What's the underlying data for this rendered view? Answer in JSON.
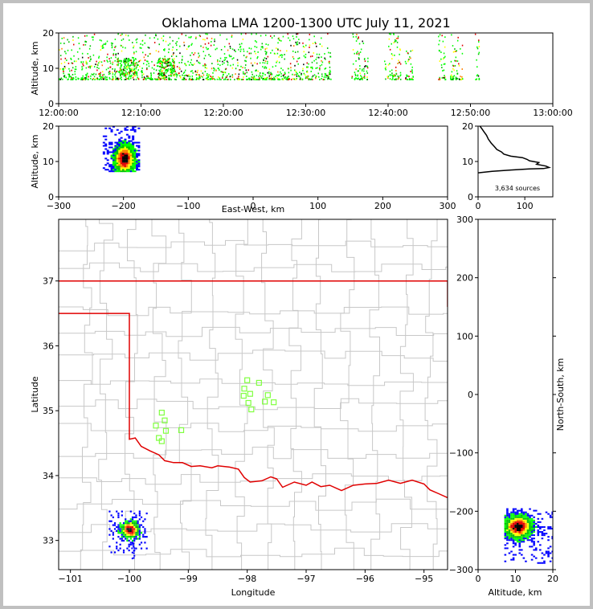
{
  "title": "Oklahoma LMA 1200-1300 UTC July 11, 2021",
  "colors": {
    "frame": "#c0c0c0",
    "state_border": "#e00000",
    "county_lines": "#c8c8c8",
    "station": "#80ff40",
    "profile_line": "#000000"
  },
  "chart_data": [
    {
      "id": "time-height",
      "type": "scatter",
      "xlabel": "",
      "ylabel": "Altitude, km",
      "x_ticks": [
        "12:00:00",
        "12:10:00",
        "12:20:00",
        "12:30:00",
        "12:40:00",
        "12:50:00",
        "13:00:00"
      ],
      "y_ticks": [
        0,
        10,
        20
      ],
      "xlim_minutes": [
        0,
        60
      ],
      "ylim": [
        0,
        20
      ],
      "active_periods_minutes": [
        [
          0,
          33
        ],
        [
          35.5,
          37.5
        ],
        [
          39.5,
          41.5
        ],
        [
          42,
          43
        ],
        [
          46,
          47
        ],
        [
          47.5,
          49
        ],
        [
          50.5,
          51
        ]
      ],
      "dense_periods_minutes": [
        [
          7,
          9.5
        ],
        [
          12,
          14
        ]
      ],
      "altitude_range_km": [
        7,
        20
      ],
      "dense_altitude_km": [
        8,
        13
      ]
    },
    {
      "id": "ew-height",
      "type": "heatmap",
      "xlabel": "East-West, km",
      "ylabel": "Altitude, km",
      "x_ticks": [
        -300,
        -200,
        -100,
        0,
        100,
        200,
        300
      ],
      "y_ticks": [
        0,
        10,
        20
      ],
      "xlim": [
        -300,
        300
      ],
      "ylim": [
        0,
        20
      ],
      "source_region": {
        "x_range_km": [
          -232,
          -177
        ],
        "core_x_km": -200,
        "alt_range_km": [
          7,
          20
        ],
        "core_alt_km": 10.5
      }
    },
    {
      "id": "height-histogram",
      "type": "line",
      "annotation": "3,634 sources",
      "x_ticks": [
        0,
        100
      ],
      "y_ticks": [
        0,
        10,
        20
      ],
      "xlim": [
        0,
        160
      ],
      "ylim": [
        0,
        20
      ],
      "profile": [
        [
          0,
          6.8
        ],
        [
          30,
          7.2
        ],
        [
          70,
          7.6
        ],
        [
          110,
          7.9
        ],
        [
          140,
          8.0
        ],
        [
          152,
          8.3
        ],
        [
          145,
          8.7
        ],
        [
          125,
          9.2
        ],
        [
          130,
          9.7
        ],
        [
          110,
          10.2
        ],
        [
          105,
          10.6
        ],
        [
          95,
          11.1
        ],
        [
          70,
          11.5
        ],
        [
          55,
          12.1
        ],
        [
          50,
          12.7
        ],
        [
          40,
          13.4
        ],
        [
          35,
          14.2
        ],
        [
          28,
          15.2
        ],
        [
          22,
          16.3
        ],
        [
          18,
          17.4
        ],
        [
          12,
          18.5
        ],
        [
          8,
          19.3
        ],
        [
          4,
          20.0
        ],
        [
          0,
          20.4
        ]
      ]
    },
    {
      "id": "plan-view",
      "type": "scatter",
      "xlabel": "Longitude",
      "ylabel": "Latitude",
      "x_ticks": [
        -101,
        -100,
        -99,
        -98,
        -97,
        -96,
        -95
      ],
      "y_ticks": [
        33,
        34,
        35,
        36,
        37
      ],
      "xlim": [
        -101.2,
        -94.6
      ],
      "ylim": [
        32.55,
        37.95
      ],
      "state_border_north_lat": 37.0,
      "state_border_panhandle_lat": 36.5,
      "state_border_west_lon": -100.0,
      "red_river": [
        [
          -100.0,
          34.56
        ],
        [
          -99.9,
          34.58
        ],
        [
          -99.8,
          34.45
        ],
        [
          -99.65,
          34.38
        ],
        [
          -99.5,
          34.32
        ],
        [
          -99.4,
          34.23
        ],
        [
          -99.25,
          34.2
        ],
        [
          -99.1,
          34.2
        ],
        [
          -98.95,
          34.14
        ],
        [
          -98.8,
          34.15
        ],
        [
          -98.6,
          34.12
        ],
        [
          -98.5,
          34.15
        ],
        [
          -98.3,
          34.13
        ],
        [
          -98.15,
          34.1
        ],
        [
          -98.05,
          33.97
        ],
        [
          -97.95,
          33.9
        ],
        [
          -97.75,
          33.92
        ],
        [
          -97.6,
          33.98
        ],
        [
          -97.5,
          33.95
        ],
        [
          -97.4,
          33.82
        ],
        [
          -97.2,
          33.9
        ],
        [
          -97.0,
          33.85
        ],
        [
          -96.9,
          33.9
        ],
        [
          -96.75,
          33.83
        ],
        [
          -96.6,
          33.85
        ],
        [
          -96.4,
          33.77
        ],
        [
          -96.2,
          33.85
        ],
        [
          -96.0,
          33.87
        ],
        [
          -95.8,
          33.88
        ],
        [
          -95.6,
          33.93
        ],
        [
          -95.4,
          33.88
        ],
        [
          -95.2,
          33.93
        ],
        [
          -95.0,
          33.87
        ],
        [
          -94.9,
          33.78
        ],
        [
          -94.75,
          33.72
        ],
        [
          -94.6,
          33.66
        ]
      ],
      "stations": [
        [
          -98.0,
          35.47
        ],
        [
          -97.8,
          35.43
        ],
        [
          -98.05,
          35.34
        ],
        [
          -97.95,
          35.26
        ],
        [
          -98.06,
          35.23
        ],
        [
          -97.65,
          35.24
        ],
        [
          -97.7,
          35.14
        ],
        [
          -97.55,
          35.13
        ],
        [
          -97.98,
          35.12
        ],
        [
          -97.93,
          35.02
        ],
        [
          -99.45,
          34.97
        ],
        [
          -99.4,
          34.85
        ],
        [
          -99.55,
          34.77
        ],
        [
          -99.38,
          34.69
        ],
        [
          -99.12,
          34.7
        ],
        [
          -99.5,
          34.58
        ],
        [
          -99.45,
          34.53
        ]
      ],
      "storm_center": [
        -100.0,
        33.18
      ]
    },
    {
      "id": "ns-height",
      "type": "heatmap",
      "xlabel": "Altitude, km",
      "ylabel": "North-South, km",
      "x_ticks": [
        0,
        10,
        20
      ],
      "y_ticks": [
        -300,
        -200,
        -100,
        0,
        100,
        200,
        300
      ],
      "xlim": [
        0,
        20
      ],
      "ylim": [
        -300,
        300
      ],
      "source_region": {
        "ns_range_km": [
          -290,
          -195
        ],
        "core_ns_km": -228,
        "alt_range_km": [
          7,
          20
        ],
        "core_alt_km": 10.5
      }
    }
  ]
}
